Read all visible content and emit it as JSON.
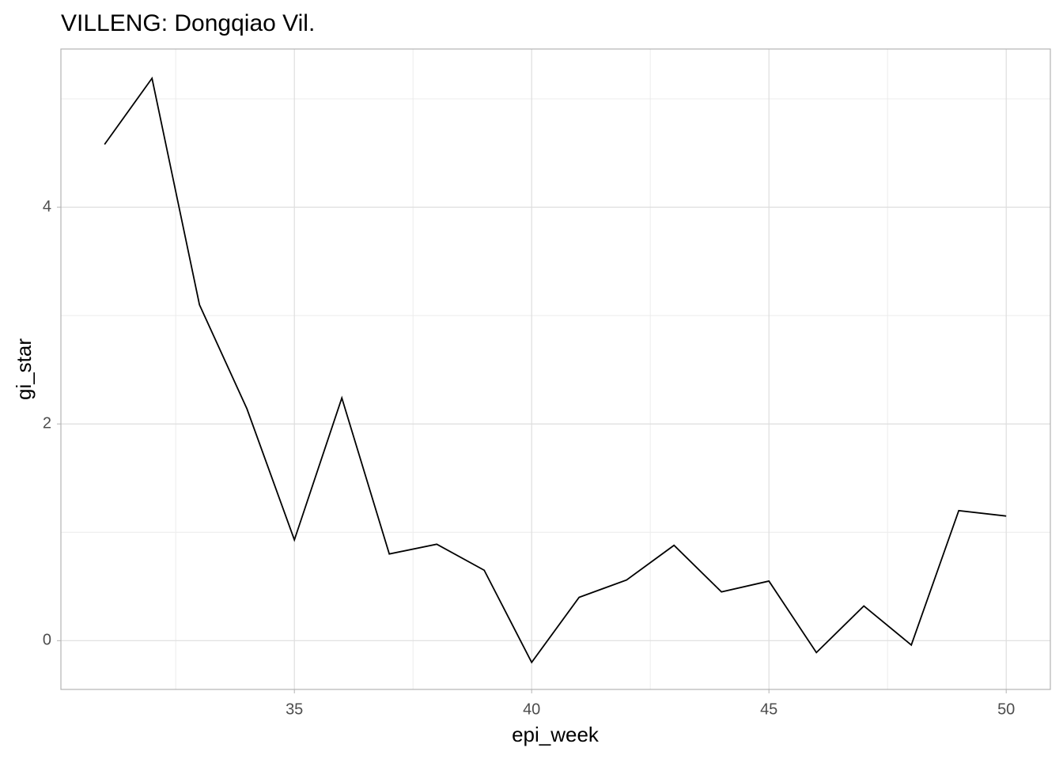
{
  "chart_data": {
    "type": "line",
    "title": "VILLENG: Dongqiao Vil.",
    "x_label": "epi_week",
    "y_label": "gi_star",
    "x": [
      31,
      32,
      33,
      34,
      35,
      36,
      37,
      38,
      39,
      40,
      41,
      42,
      43,
      44,
      45,
      46,
      47,
      48,
      49,
      50
    ],
    "series": [
      {
        "name": "gi_star",
        "color": "#000000",
        "values": [
          4.58,
          5.19,
          3.1,
          2.14,
          0.93,
          2.24,
          0.8,
          0.89,
          0.65,
          -0.2,
          0.4,
          0.56,
          0.88,
          0.45,
          0.55,
          -0.11,
          0.32,
          -0.04,
          1.2,
          1.15
        ]
      }
    ],
    "xlim": [
      30.08,
      50.93
    ],
    "ylim": [
      -0.45,
      5.46
    ],
    "xticks": [
      35,
      40,
      45,
      50
    ],
    "yticks": [
      0,
      2,
      4
    ],
    "x_minor_ticks": [
      32.5,
      37.5,
      42.5,
      47.5
    ],
    "y_minor_ticks": [
      1,
      3,
      5
    ],
    "grid": true
  }
}
